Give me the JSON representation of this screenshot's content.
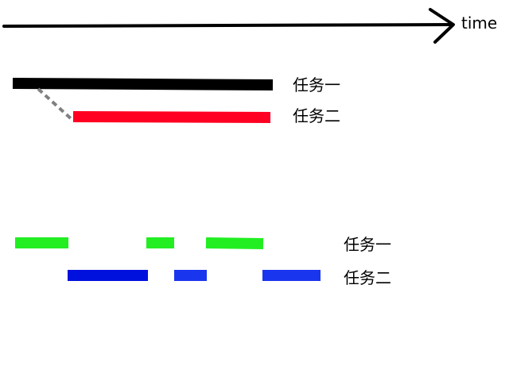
{
  "axis": {
    "label": "time"
  },
  "diagram_top": {
    "tasks": [
      {
        "label": "任务一",
        "color": "#000000"
      },
      {
        "label": "任务二",
        "color": "#ff0022"
      }
    ],
    "connector_color": "#808080"
  },
  "diagram_bottom": {
    "tasks": [
      {
        "label": "任务一",
        "color": "#22ee22"
      },
      {
        "label": "任务二",
        "color": "#0011dd"
      }
    ]
  }
}
